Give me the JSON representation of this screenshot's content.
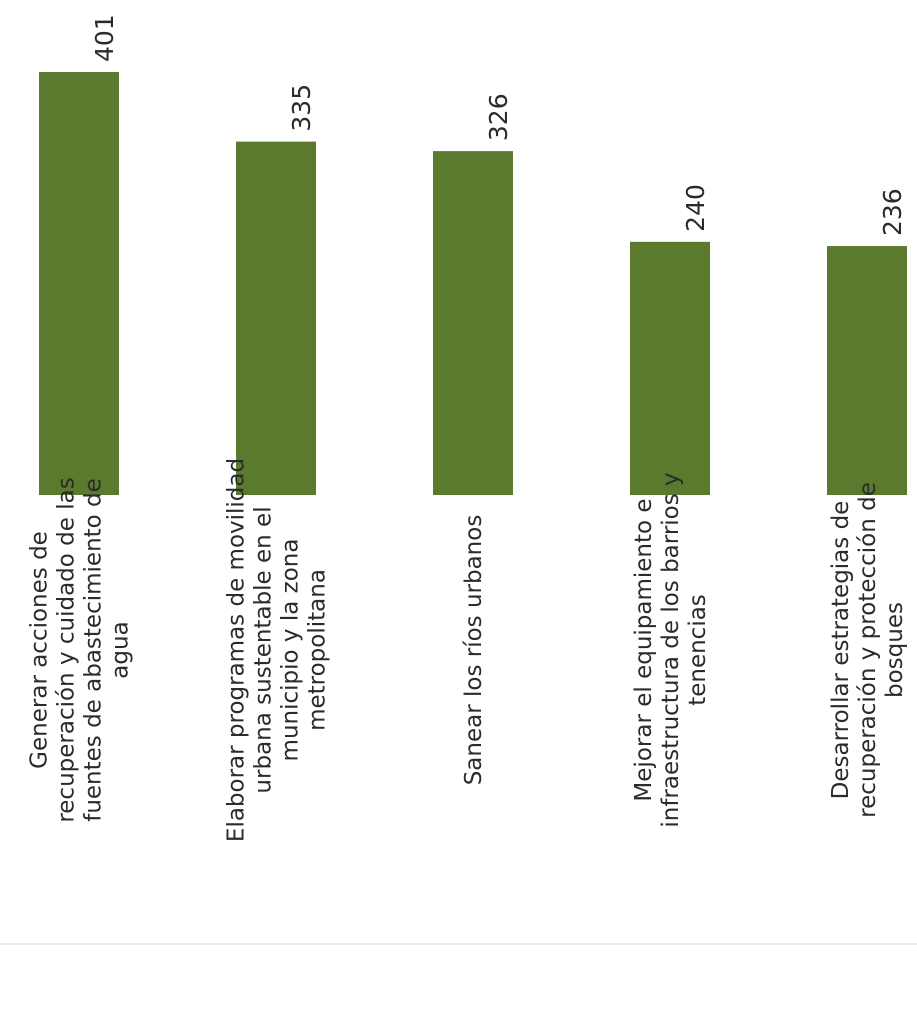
{
  "chart_data": {
    "type": "bar",
    "categories": [
      "Generar acciones de recuperación y cuidado de las fuentes de abastecimiento de agua",
      "Elaborar programas de movilidad urbana sustentable en el municipio y la zona metropolitana",
      "Sanear los ríos urbanos",
      "Mejorar el equipamiento e infraestructura de los barrios y tenencias",
      "Desarrollar estrategias de recuperación y protección de bosques"
    ],
    "category_label_lines": [
      [
        "Generar acciones de",
        "recuperación y cuidado de las",
        "fuentes de abastecimiento de",
        "agua"
      ],
      [
        "Elaborar programas de movilidad",
        "urbana sustentable en el",
        "municipio y la zona",
        "metropolitana"
      ],
      [
        "Sanear los ríos urbanos"
      ],
      [
        "Mejorar el equipamiento e",
        "infraestructura de los barrios y",
        "tenencias"
      ],
      [
        "Desarrollar estrategias de",
        "recuperación y protección de",
        "bosques"
      ]
    ],
    "values": [
      401,
      335,
      326,
      240,
      236
    ],
    "value_labels": [
      "401",
      "335",
      "326",
      "240",
      "236"
    ],
    "ylim": [
      0,
      401
    ],
    "grid": false,
    "bar_color": "#5b7a2e",
    "title": "",
    "xlabel": "",
    "ylabel": ""
  }
}
